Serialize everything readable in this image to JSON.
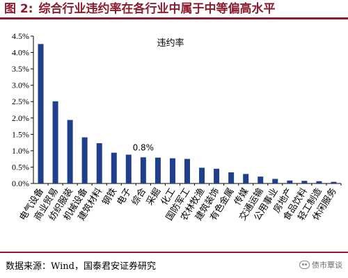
{
  "header": {
    "figure_label": "图 2:",
    "title": "综合行业违约率在各行业中属于中等偏高水平"
  },
  "footer": {
    "source": "数据来源：Wind，国泰君安证券研究",
    "watermark": "债市覃谈"
  },
  "colors": {
    "bar": "#1f3f8c",
    "title": "#8c1c2e",
    "rule": "#8c1c2e"
  },
  "chart_data": {
    "type": "bar",
    "legend": "违约率",
    "legend_position": "top-center",
    "grid": false,
    "ylim": [
      0,
      0.045
    ],
    "yticks": [
      "0.0%",
      "0.5%",
      "1.0%",
      "1.5%",
      "2.0%",
      "2.5%",
      "3.0%",
      "3.5%",
      "4.0%",
      "4.5%"
    ],
    "categories": [
      "电气设备",
      "商业贸易",
      "纺织服装",
      "机械设备",
      "建筑材料",
      "钢铁",
      "电子",
      "综合",
      "采掘",
      "化工",
      "国防军工",
      "农林牧渔",
      "建筑装饰",
      "有色金属",
      "传媒",
      "交通运输",
      "公用事业",
      "房地产",
      "食品饮料",
      "轻工制造",
      "休闲服务"
    ],
    "values": [
      0.0426,
      0.0251,
      0.0194,
      0.0141,
      0.0123,
      0.0094,
      0.0088,
      0.008,
      0.0079,
      0.0077,
      0.0075,
      0.0048,
      0.0045,
      0.0034,
      0.0029,
      0.0021,
      0.0014,
      0.0009,
      0.0008,
      0.0007,
      0.0005
    ],
    "annotation": {
      "index": 7,
      "text": "0.8%"
    }
  }
}
